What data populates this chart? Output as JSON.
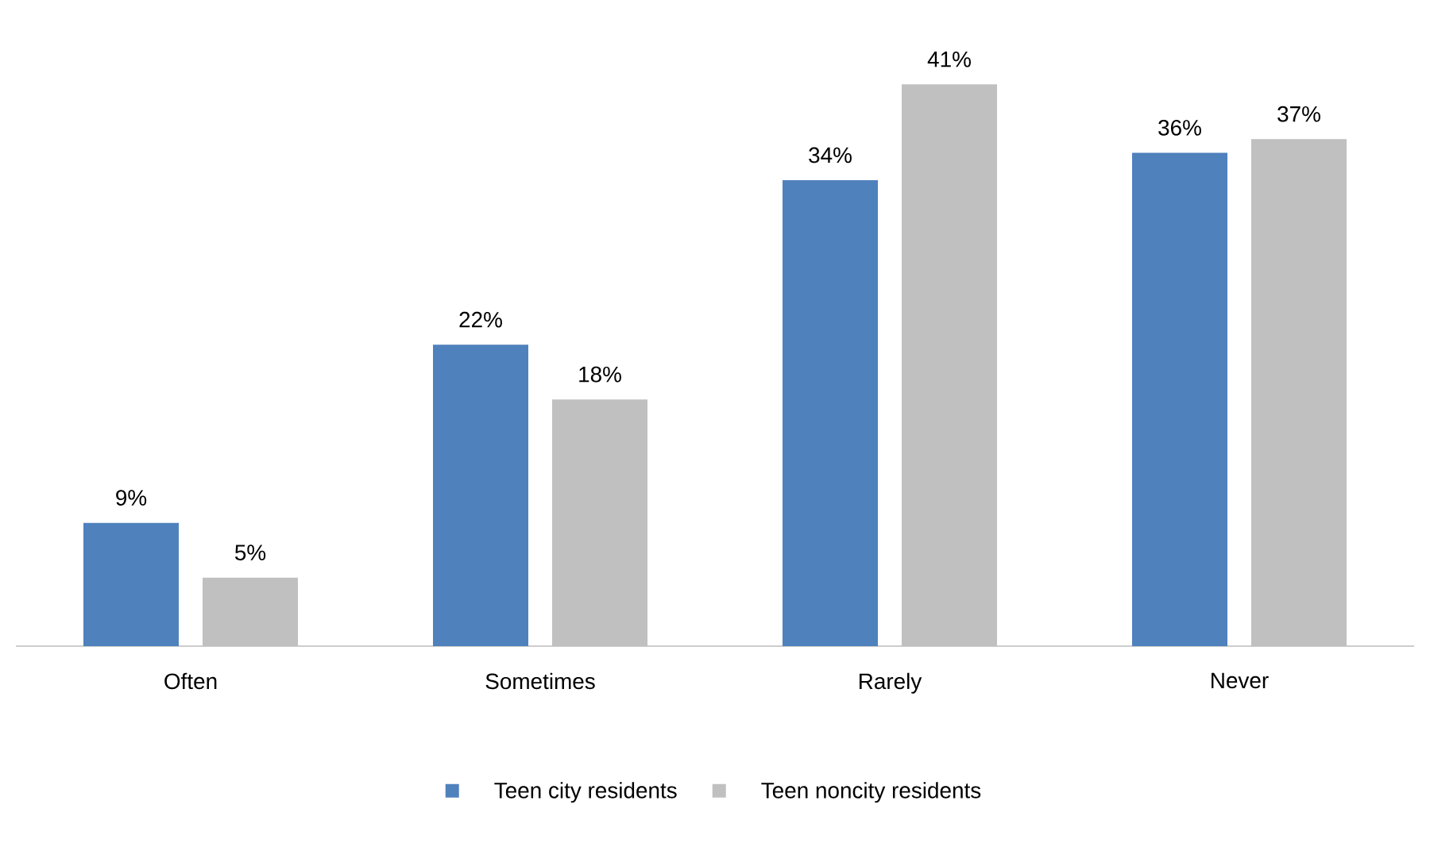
{
  "chart_data": {
    "type": "bar",
    "categories": [
      "Often",
      "Sometimes",
      "Rarely",
      "Never"
    ],
    "series": [
      {
        "name": "Teen city residents",
        "color": "#4f81bd",
        "values": [
          9,
          22,
          34,
          36
        ],
        "value_labels": [
          "9%",
          "22%",
          "34%",
          "36%"
        ]
      },
      {
        "name": "Teen noncity residents",
        "color": "#c0c0c0",
        "values": [
          5,
          18,
          41,
          37
        ],
        "value_labels": [
          "5%",
          "18%",
          "41%",
          "37%"
        ]
      }
    ],
    "legend": "bottom"
  }
}
